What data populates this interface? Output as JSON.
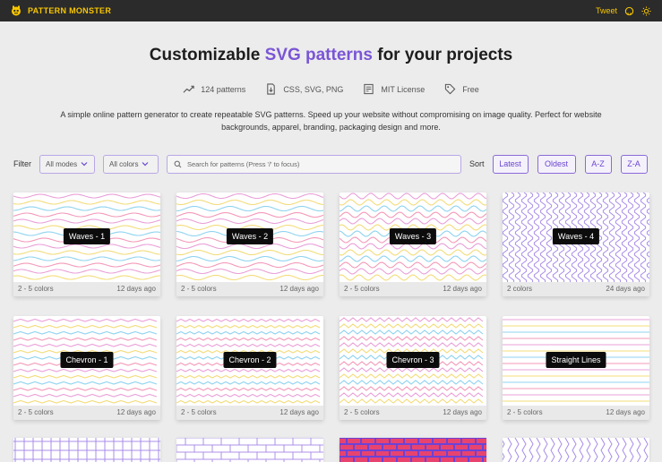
{
  "header": {
    "brand": "PATTERN MONSTER",
    "tweet": "Tweet"
  },
  "hero": {
    "title_before": "Customizable ",
    "title_accent": "SVG patterns",
    "title_after": " for your projects"
  },
  "stats": [
    {
      "icon": "trend-up-icon",
      "text": "124 patterns"
    },
    {
      "icon": "file-download-icon",
      "text": "CSS, SVG, PNG"
    },
    {
      "icon": "license-icon",
      "text": "MIT License"
    },
    {
      "icon": "tag-icon",
      "text": "Free"
    }
  ],
  "description": "A simple online pattern generator to create repeatable SVG patterns. Speed up your website without compromising on image quality. Perfect for website backgrounds, apparel, branding, packaging design and more.",
  "filter": {
    "label": "Filter",
    "modes": "All modes",
    "colors": "All colors",
    "search_placeholder": "Search for patterns (Press '/' to focus)"
  },
  "sort": {
    "label": "Sort",
    "options": [
      "Latest",
      "Oldest",
      "A-Z",
      "Z-A"
    ]
  },
  "accent_color": "#7a55d6",
  "palette": [
    "#e9a0d8",
    "#f3dc7a",
    "#8fd3ef",
    "#f39ab9",
    "#a98ce8"
  ],
  "patterns": [
    {
      "name": "Waves - 1",
      "colors": "2 - 5 colors",
      "age": "12 days ago"
    },
    {
      "name": "Waves - 2",
      "colors": "2 - 5 colors",
      "age": "12 days ago"
    },
    {
      "name": "Waves - 3",
      "colors": "2 - 5 colors",
      "age": "12 days ago"
    },
    {
      "name": "Waves - 4",
      "colors": "2 colors",
      "age": "24 days ago"
    },
    {
      "name": "Chevron - 1",
      "colors": "2 - 5 colors",
      "age": "12 days ago"
    },
    {
      "name": "Chevron - 2",
      "colors": "2 - 5 colors",
      "age": "12 days ago"
    },
    {
      "name": "Chevron - 3",
      "colors": "2 - 5 colors",
      "age": "12 days ago"
    },
    {
      "name": "Straight Lines",
      "colors": "2 - 5 colors",
      "age": "12 days ago"
    }
  ]
}
